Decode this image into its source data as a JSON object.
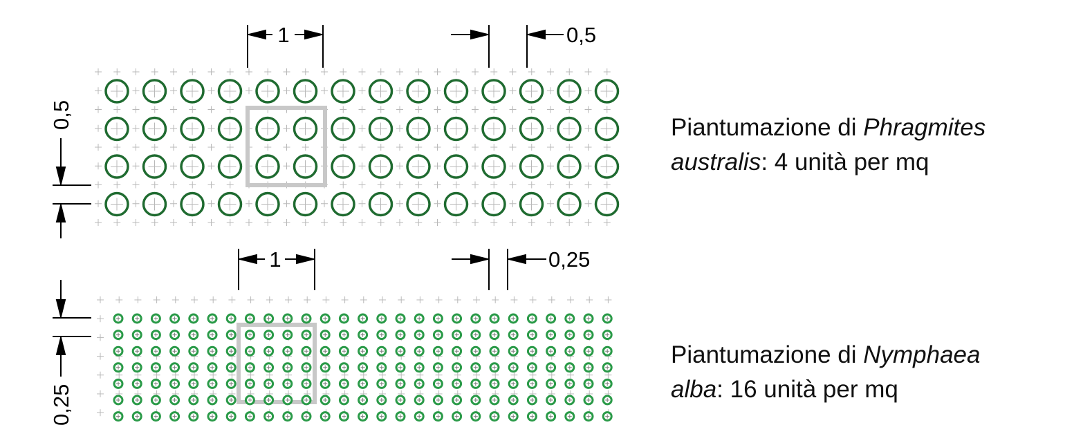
{
  "colors": {
    "reed": "#1f6b30",
    "lily": "#2a9a48",
    "grid": "#b8b8b8",
    "highlight": "#c8c8c8",
    "dimension": "#000000"
  },
  "top_panel": {
    "species": "Phragmites australis",
    "density_per_sqm": 4,
    "caption": {
      "prefix": "Piantumazione di ",
      "species_part1": "Phragmites",
      "species_part2": "australis",
      "suffix": ": 4 unità per mq"
    },
    "dimensions": {
      "unit_width": "1",
      "spacing_h": "0,5",
      "spacing_v": "0,5"
    }
  },
  "bottom_panel": {
    "species": "Nymphaea alba",
    "density_per_sqm": 16,
    "caption": {
      "prefix": "Piantumazione di ",
      "species_part1": "Nymphaea",
      "species_part2": "alba",
      "suffix": ": 16 unità per mq"
    },
    "dimensions": {
      "unit_width": "1",
      "spacing_h": "0,25",
      "spacing_v": "0,25"
    }
  }
}
